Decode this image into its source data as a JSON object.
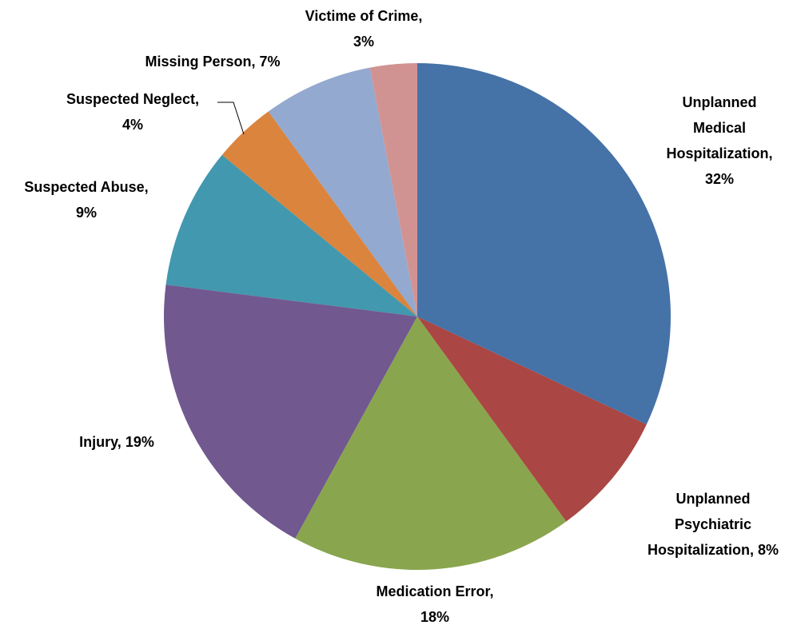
{
  "chart_data": {
    "type": "pie",
    "categories": [
      "Unplanned Medical Hospitalization,",
      "Unplanned Psychiatric Hospitalization,",
      "Medication Error,",
      "Injury,",
      "Suspected Abuse,",
      "Suspected Neglect,",
      "Missing Person,",
      "Victime of Crime,"
    ],
    "values": [
      32,
      8,
      18,
      19,
      9,
      4,
      7,
      3
    ],
    "value_labels": [
      "32%",
      "8%",
      "18%",
      "19%",
      "9%",
      "4%",
      "7%",
      "3%"
    ],
    "colors": [
      "#4572a7",
      "#aa4643",
      "#89a54e",
      "#71588f",
      "#4198af",
      "#db843d",
      "#93a9cf",
      "#d19392"
    ]
  }
}
